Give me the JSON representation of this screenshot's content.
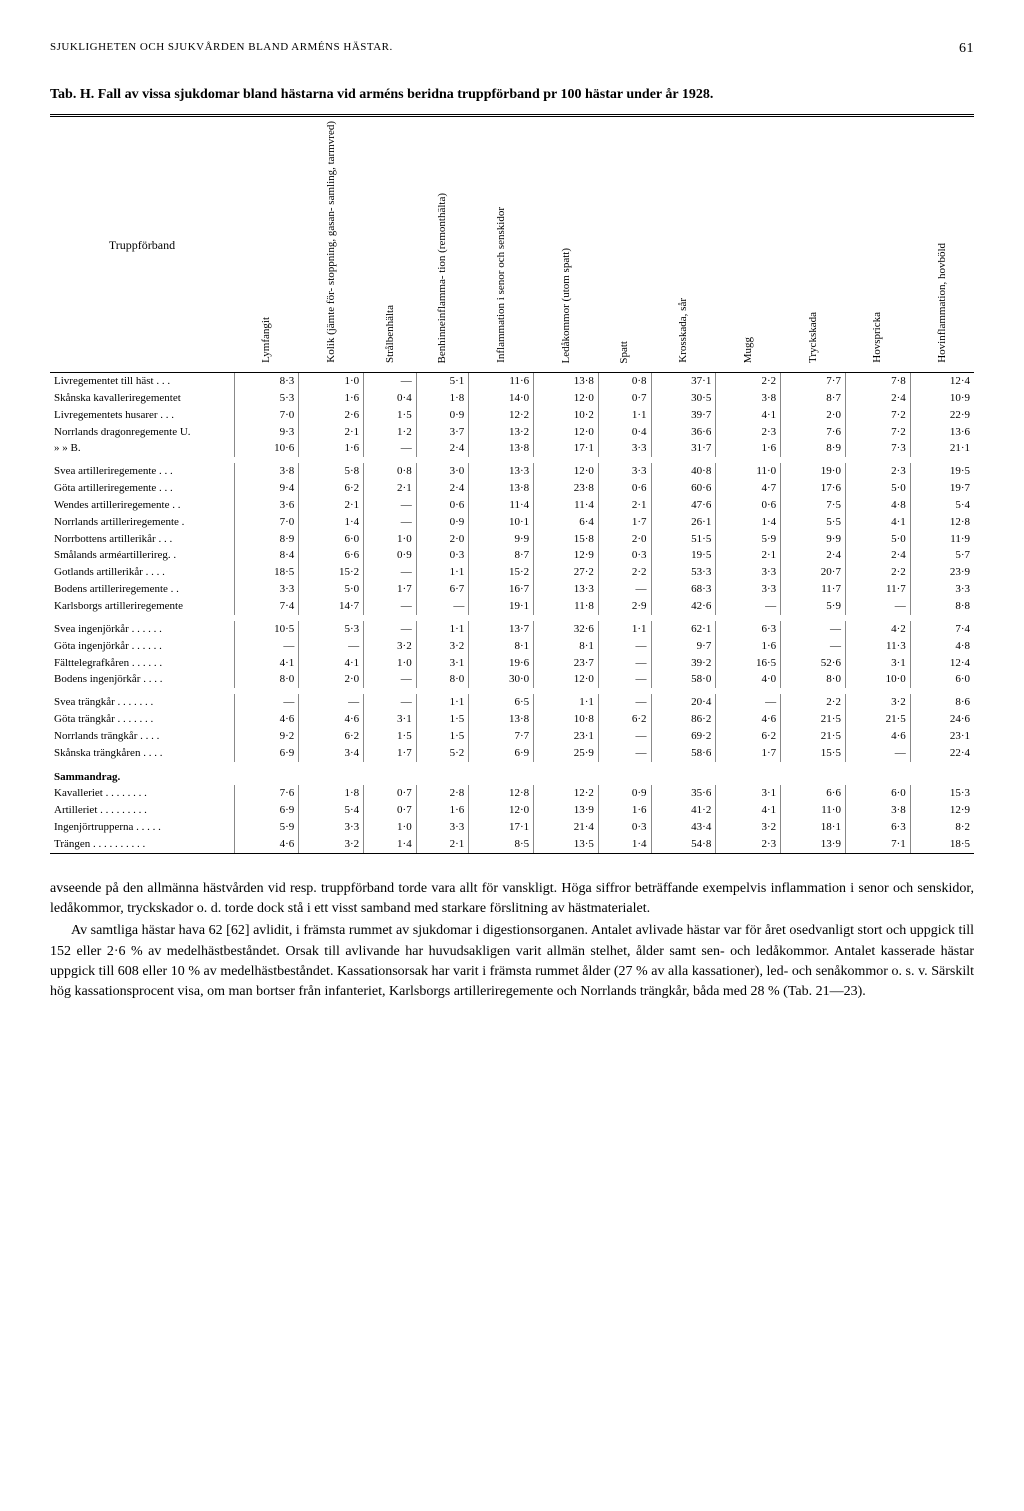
{
  "header": {
    "running_title": "SJUKLIGHETEN OCH SJUKVÅRDEN BLAND ARMÉNS HÄSTAR.",
    "page_number": "61"
  },
  "table": {
    "caption_prefix": "Tab. H.",
    "caption": "Fall av vissa sjukdomar bland hästarna vid arméns beridna truppförband pr 100 hästar under år 1928.",
    "col_label": "Truppförband",
    "columns": [
      "Lymfangit",
      "Kolik (jämte för-\nstoppning, gasan-\nsamling, tarmvred)",
      "Strålbenhälta",
      "Benhinneinflamma-\ntion (remonthälta)",
      "Inflammation i senor\noch senskidor",
      "Ledåkommor\n(utom spatt)",
      "Spatt",
      "Krosskada, sår",
      "Mugg",
      "Tryckskada",
      "Hovspricka",
      "Hovinflammation,\nhovböld"
    ],
    "sections": [
      {
        "rows": [
          {
            "label": "Livregementet till häst . . .",
            "v": [
              "8·3",
              "1·0",
              "—",
              "5·1",
              "11·6",
              "13·8",
              "0·8",
              "37·1",
              "2·2",
              "7·7",
              "7·8",
              "12·4"
            ]
          },
          {
            "label": "Skånska kavalleriregementet",
            "v": [
              "5·3",
              "1·6",
              "0·4",
              "1·8",
              "14·0",
              "12·0",
              "0·7",
              "30·5",
              "3·8",
              "8·7",
              "2·4",
              "10·9"
            ]
          },
          {
            "label": "Livregementets husarer . . .",
            "v": [
              "7·0",
              "2·6",
              "1·5",
              "0·9",
              "12·2",
              "10·2",
              "1·1",
              "39·7",
              "4·1",
              "2·0",
              "7·2",
              "22·9"
            ]
          },
          {
            "label": "Norrlands dragonregemente U.",
            "v": [
              "9·3",
              "2·1",
              "1·2",
              "3·7",
              "13·2",
              "12·0",
              "0·4",
              "36·6",
              "2·3",
              "7·6",
              "7·2",
              "13·6"
            ]
          },
          {
            "label": "»                »                B.",
            "v": [
              "10·6",
              "1·6",
              "—",
              "2·4",
              "13·8",
              "17·1",
              "3·3",
              "31·7",
              "1·6",
              "8·9",
              "7·3",
              "21·1"
            ]
          }
        ]
      },
      {
        "rows": [
          {
            "label": "Svea artilleriregemente . . .",
            "v": [
              "3·8",
              "5·8",
              "0·8",
              "3·0",
              "13·3",
              "12·0",
              "3·3",
              "40·8",
              "11·0",
              "19·0",
              "2·3",
              "19·5"
            ]
          },
          {
            "label": "Göta artilleriregemente . . .",
            "v": [
              "9·4",
              "6·2",
              "2·1",
              "2·4",
              "13·8",
              "23·8",
              "0·6",
              "60·6",
              "4·7",
              "17·6",
              "5·0",
              "19·7"
            ]
          },
          {
            "label": "Wendes artilleriregemente . .",
            "v": [
              "3·6",
              "2·1",
              "—",
              "0·6",
              "11·4",
              "11·4",
              "2·1",
              "47·6",
              "0·6",
              "7·5",
              "4·8",
              "5·4"
            ]
          },
          {
            "label": "Norrlands artilleriregemente .",
            "v": [
              "7·0",
              "1·4",
              "—",
              "0·9",
              "10·1",
              "6·4",
              "1·7",
              "26·1",
              "1·4",
              "5·5",
              "4·1",
              "12·8"
            ]
          },
          {
            "label": "Norrbottens artillerikår . . .",
            "v": [
              "8·9",
              "6·0",
              "1·0",
              "2·0",
              "9·9",
              "15·8",
              "2·0",
              "51·5",
              "5·9",
              "9·9",
              "5·0",
              "11·9"
            ]
          },
          {
            "label": "Smålands arméartillerireg. .",
            "v": [
              "8·4",
              "6·6",
              "0·9",
              "0·3",
              "8·7",
              "12·9",
              "0·3",
              "19·5",
              "2·1",
              "2·4",
              "2·4",
              "5·7"
            ]
          },
          {
            "label": "Gotlands artillerikår . . . .",
            "v": [
              "18·5",
              "15·2",
              "—",
              "1·1",
              "15·2",
              "27·2",
              "2·2",
              "53·3",
              "3·3",
              "20·7",
              "2·2",
              "23·9"
            ]
          },
          {
            "label": "Bodens artilleriregemente . .",
            "v": [
              "3·3",
              "5·0",
              "1·7",
              "6·7",
              "16·7",
              "13·3",
              "—",
              "68·3",
              "3·3",
              "11·7",
              "11·7",
              "3·3"
            ]
          },
          {
            "label": "Karlsborgs artilleriregemente",
            "v": [
              "7·4",
              "14·7",
              "—",
              "—",
              "19·1",
              "11·8",
              "2·9",
              "42·6",
              "—",
              "5·9",
              "—",
              "8·8"
            ]
          }
        ]
      },
      {
        "rows": [
          {
            "label": "Svea ingenjörkår . . . . . .",
            "v": [
              "10·5",
              "5·3",
              "—",
              "1·1",
              "13·7",
              "32·6",
              "1·1",
              "62·1",
              "6·3",
              "—",
              "4·2",
              "7·4"
            ]
          },
          {
            "label": "Göta ingenjörkår . . . . . .",
            "v": [
              "—",
              "—",
              "3·2",
              "3·2",
              "8·1",
              "8·1",
              "—",
              "9·7",
              "1·6",
              "—",
              "11·3",
              "4·8"
            ]
          },
          {
            "label": "Fälttelegrafkåren . . . . . .",
            "v": [
              "4·1",
              "4·1",
              "1·0",
              "3·1",
              "19·6",
              "23·7",
              "—",
              "39·2",
              "16·5",
              "52·6",
              "3·1",
              "12·4"
            ]
          },
          {
            "label": "Bodens ingenjörkår . . . .",
            "v": [
              "8·0",
              "2·0",
              "—",
              "8·0",
              "30·0",
              "12·0",
              "—",
              "58·0",
              "4·0",
              "8·0",
              "10·0",
              "6·0"
            ]
          }
        ]
      },
      {
        "rows": [
          {
            "label": "Svea trängkår . . . . . . .",
            "v": [
              "—",
              "—",
              "—",
              "1·1",
              "6·5",
              "1·1",
              "—",
              "20·4",
              "—",
              "2·2",
              "3·2",
              "8·6"
            ]
          },
          {
            "label": "Göta trängkår . . . . . . .",
            "v": [
              "4·6",
              "4·6",
              "3·1",
              "1·5",
              "13·8",
              "10·8",
              "6·2",
              "86·2",
              "4·6",
              "21·5",
              "21·5",
              "24·6"
            ]
          },
          {
            "label": "Norrlands trängkår . . . .",
            "v": [
              "9·2",
              "6·2",
              "1·5",
              "1·5",
              "7·7",
              "23·1",
              "—",
              "69·2",
              "6·2",
              "21·5",
              "4·6",
              "23·1"
            ]
          },
          {
            "label": "Skånska trängkåren . . . .",
            "v": [
              "6·9",
              "3·4",
              "1·7",
              "5·2",
              "6·9",
              "25·9",
              "—",
              "58·6",
              "1·7",
              "15·5",
              "—",
              "22·4"
            ]
          }
        ]
      },
      {
        "heading": "Sammandrag.",
        "rows": [
          {
            "label": "Kavalleriet . . . . . . . .",
            "v": [
              "7·6",
              "1·8",
              "0·7",
              "2·8",
              "12·8",
              "12·2",
              "0·9",
              "35·6",
              "3·1",
              "6·6",
              "6·0",
              "15·3"
            ]
          },
          {
            "label": "Artilleriet . . . . . . . . .",
            "v": [
              "6·9",
              "5·4",
              "0·7",
              "1·6",
              "12·0",
              "13·9",
              "1·6",
              "41·2",
              "4·1",
              "11·0",
              "3·8",
              "12·9"
            ]
          },
          {
            "label": "Ingenjörtrupperna . . . . .",
            "v": [
              "5·9",
              "3·3",
              "1·0",
              "3·3",
              "17·1",
              "21·4",
              "0·3",
              "43·4",
              "3·2",
              "18·1",
              "6·3",
              "8·2"
            ]
          },
          {
            "label": "Trängen . . . . . . . . . .",
            "v": [
              "4·6",
              "3·2",
              "1·4",
              "2·1",
              "8·5",
              "13·5",
              "1·4",
              "54·8",
              "2·3",
              "13·9",
              "7·1",
              "18·5"
            ]
          }
        ]
      }
    ]
  },
  "body": {
    "p1": "avseende på den allmänna hästvården vid resp. truppförband torde vara allt för vanskligt. Höga siffror beträffande exempelvis inflammation i senor och senskidor, ledåkommor, tryckskador o. d. torde dock stå i ett visst samband med starkare förslitning av hästmaterialet.",
    "p2": "Av samtliga hästar hava 62 [62] avlidit, i främsta rummet av sjukdomar i digestionsorganen. Antalet avlivade hästar var för året osedvanligt stort och uppgick till 152 eller 2·6 % av medelhästbeståndet. Orsak till avlivande har huvudsakligen varit allmän stelhet, ålder samt sen- och ledåkommor. Antalet kasserade hästar uppgick till 608 eller 10 % av medelhästbeståndet. Kassationsorsak har varit i främsta rummet ålder (27 % av alla kassationer), led- och senåkommor o. s. v. Särskilt hög kassationsprocent visa, om man bortser från infanteriet, Karlsborgs artilleriregemente och Norrlands trängkår, båda med 28 % (Tab. 21—23)."
  }
}
